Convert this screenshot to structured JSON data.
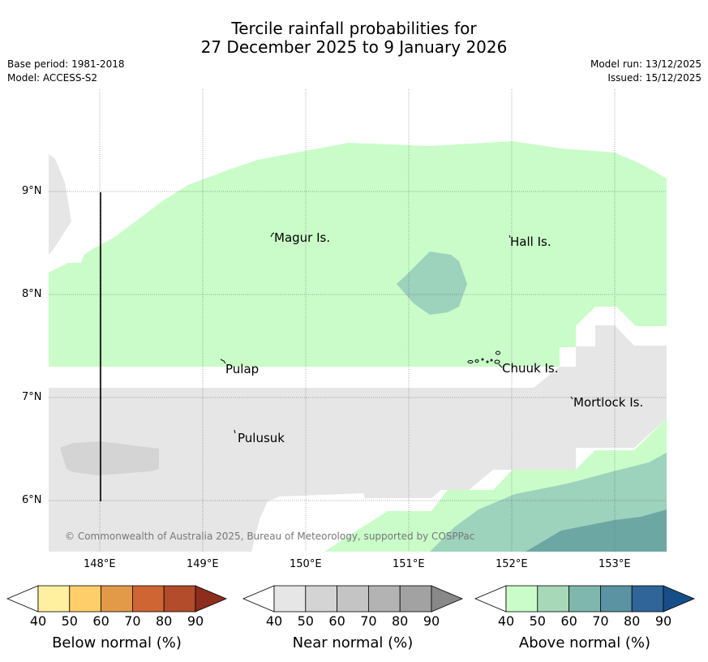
{
  "title": {
    "line1": "Tercile rainfall probabilities for",
    "line2": "27 December 2025 to 9 January 2026"
  },
  "meta_left": {
    "base_period": "Base period: 1981-2018",
    "model": "Model: ACCESS-S2"
  },
  "meta_right": {
    "model_run": "Model run: 13/12/2025",
    "issued": "Issued: 15/12/2025"
  },
  "map": {
    "lat_labels": [
      "9°N",
      "8°N",
      "7°N",
      "6°N"
    ],
    "lon_labels": [
      "148°E",
      "149°E",
      "150°E",
      "151°E",
      "152°E",
      "153°E"
    ],
    "places": [
      "Magur Is.",
      "Hall Is.",
      "Pulap",
      "Chuuk Is.",
      "Mortlock Is.",
      "Pulusuk"
    ],
    "copyright": "© Commonwealth of Australia 2025, Bureau of Meteorology, supported by COSPPac"
  },
  "colorbars": [
    {
      "label": "Below normal (%)",
      "ticks": [
        "40",
        "50",
        "60",
        "70",
        "80",
        "90"
      ],
      "colors": [
        "#fff0a0",
        "#fdce6a",
        "#e39a48",
        "#cf6533",
        "#b24c2a",
        "#8c2d1e"
      ]
    },
    {
      "label": "Near normal (%)",
      "ticks": [
        "40",
        "50",
        "60",
        "70",
        "80",
        "90"
      ],
      "colors": [
        "#e6e6e6",
        "#d4d4d4",
        "#c4c4c4",
        "#b3b3b3",
        "#a2a2a2",
        "#888888"
      ]
    },
    {
      "label": "Above normal (%)",
      "ticks": [
        "40",
        "50",
        "60",
        "70",
        "80",
        "90"
      ],
      "colors": [
        "#c9fcc9",
        "#a7d8b8",
        "#7fb7ac",
        "#5b93a2",
        "#2f6599",
        "#164f87"
      ]
    }
  ],
  "colors": {
    "above_40": "#c9fcc9",
    "above_50": "#9dd2bd",
    "above_60": "#6da7a4",
    "near_40": "#e6e6e6",
    "near_50": "#d4d4d4",
    "grid": "#555555"
  }
}
